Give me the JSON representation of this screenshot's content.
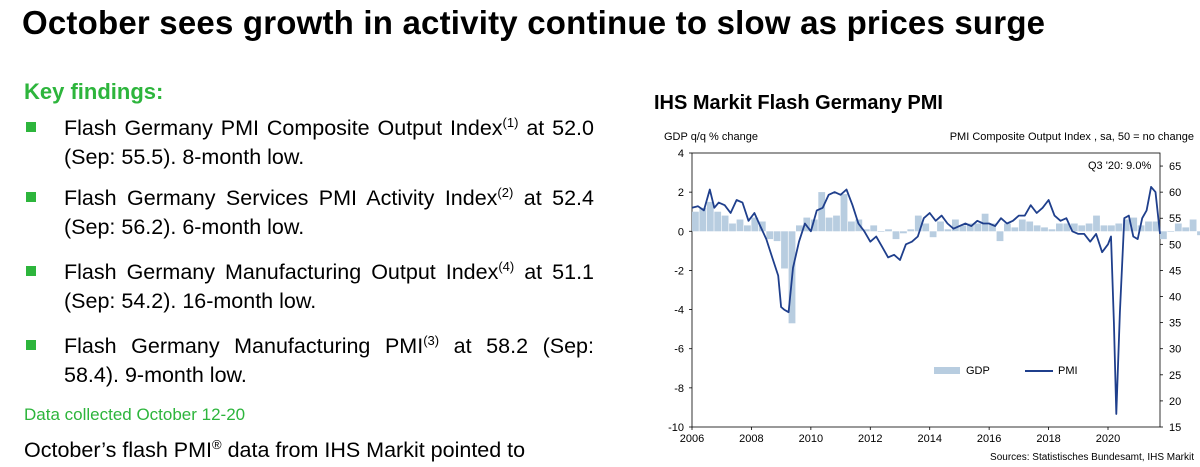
{
  "page": {
    "title": "October sees growth in activity continue to slow as prices surge",
    "key_findings_label": "Key findings:",
    "findings": [
      {
        "text": "Flash Germany PMI Composite Output Index",
        "sup": "(1)",
        "rest": " at 52.0 (Sep: 55.5). 8-month low."
      },
      {
        "text": "Flash Germany Services PMI Activity Index",
        "sup": "(2)",
        "rest": " at 52.4 (Sep: 56.2). 6-month low."
      },
      {
        "text": "Flash Germany Manufacturing Output Index",
        "sup": "(4)",
        "rest": " at 51.1 (Sep: 54.2). 16-month low."
      },
      {
        "text": "Flash Germany Manufacturing PMI",
        "sup": "(3)",
        "rest": " at 58.2 (Sep: 58.4). 9-month low."
      }
    ],
    "data_collected": "Data collected October 12-20",
    "paragraph_start": "October’s flash PMI",
    "paragraph_sup": "®",
    "paragraph_end": " data from IHS Markit pointed to",
    "accent_color": "#2db53c"
  },
  "chart_data": {
    "type": "bar",
    "title": "IHS Markit Flash Germany PMI",
    "left_axis_label": "GDP q/q % change",
    "right_axis_label": "PMI Composite Output Index , sa, 50 = no change",
    "annotation": "Q3 '20: 9.0%",
    "source": "Sources: Statistisches Bundesamt, IHS Markit",
    "x_range": [
      2006,
      2021.75
    ],
    "x_ticks": [
      "2006",
      "2008",
      "2010",
      "2012",
      "2014",
      "2016",
      "2018",
      "2020"
    ],
    "left_ylim": [
      -10,
      4
    ],
    "left_ticks": [
      "4",
      "2",
      "0",
      "-2",
      "-4",
      "-6",
      "-8",
      "-10"
    ],
    "right_ylim": [
      15,
      67.5
    ],
    "right_ticks": [
      "65",
      "60",
      "55",
      "50",
      "45",
      "40",
      "35",
      "30",
      "25",
      "20",
      "15"
    ],
    "legend": {
      "position": "bottom-right",
      "gdp_label": "GDP",
      "pmi_label": "PMI"
    },
    "colors": {
      "gdp": "#b8cde0",
      "pmi": "#1f3f8c"
    },
    "series": [
      {
        "name": "GDP",
        "axis": "left",
        "kind": "bar",
        "start": 2006.0,
        "step": 0.25,
        "values": [
          1.0,
          1.2,
          1.5,
          1.0,
          0.8,
          0.4,
          0.6,
          0.3,
          0.7,
          0.5,
          -0.4,
          -0.5,
          -1.9,
          -4.7,
          0.3,
          0.7,
          0.6,
          2.0,
          0.7,
          0.8,
          1.9,
          0.5,
          0.6,
          0.1,
          0.3,
          0.0,
          0.1,
          -0.4,
          -0.1,
          0.1,
          0.8,
          0.4,
          -0.3,
          0.5,
          0.1,
          0.6,
          0.3,
          0.4,
          0.4,
          0.9,
          0.4,
          -0.5,
          0.4,
          0.2,
          0.6,
          0.5,
          0.3,
          0.2,
          0.1,
          0.4,
          0.4,
          0.4,
          0.3,
          0.4,
          0.8,
          0.3,
          0.3,
          0.4,
          0.6,
          0.7,
          0.3,
          0.5,
          0.5,
          -0.4,
          0.0,
          0.4,
          0.2,
          0.6,
          -0.2,
          0.3,
          0.0,
          -1.9,
          -9.9,
          9.0,
          0.7,
          -1.9,
          2.0,
          1.8
        ]
      },
      {
        "name": "PMI",
        "axis": "right",
        "kind": "line",
        "x": [
          2006.0,
          2006.2,
          2006.4,
          2006.6,
          2006.75,
          2006.9,
          2007.1,
          2007.3,
          2007.5,
          2007.7,
          2007.9,
          2008.1,
          2008.3,
          2008.5,
          2008.7,
          2008.9,
          2009.0,
          2009.1,
          2009.25,
          2009.4,
          2009.6,
          2009.8,
          2010.0,
          2010.2,
          2010.4,
          2010.6,
          2010.8,
          2011.0,
          2011.2,
          2011.4,
          2011.6,
          2011.8,
          2012.0,
          2012.2,
          2012.4,
          2012.6,
          2012.8,
          2013.0,
          2013.2,
          2013.4,
          2013.6,
          2013.8,
          2014.0,
          2014.2,
          2014.4,
          2014.6,
          2014.8,
          2015.0,
          2015.2,
          2015.4,
          2015.6,
          2015.8,
          2016.0,
          2016.2,
          2016.4,
          2016.6,
          2016.8,
          2017.0,
          2017.2,
          2017.4,
          2017.6,
          2017.8,
          2018.0,
          2018.2,
          2018.4,
          2018.6,
          2018.8,
          2019.0,
          2019.2,
          2019.4,
          2019.6,
          2019.8,
          2020.0,
          2020.1,
          2020.2,
          2020.28,
          2020.4,
          2020.55,
          2020.7,
          2020.85,
          2021.0,
          2021.15,
          2021.3,
          2021.45,
          2021.6,
          2021.75
        ],
        "values": [
          57.0,
          57.3,
          56.5,
          60.5,
          57.0,
          58.0,
          57.5,
          56.0,
          58.5,
          58.0,
          54.5,
          56.0,
          53.5,
          51.0,
          47.5,
          44.0,
          38.0,
          37.5,
          37.0,
          45.5,
          50.5,
          54.0,
          52.5,
          56.5,
          57.0,
          59.5,
          60.0,
          59.5,
          60.5,
          57.5,
          54.0,
          52.5,
          50.5,
          51.5,
          49.5,
          47.5,
          48.0,
          47.0,
          50.0,
          50.5,
          51.5,
          55.0,
          56.0,
          54.5,
          55.5,
          54.0,
          53.0,
          53.5,
          54.0,
          53.5,
          54.5,
          54.0,
          54.0,
          53.5,
          55.0,
          54.0,
          54.5,
          55.5,
          55.5,
          57.5,
          56.0,
          57.0,
          58.5,
          55.5,
          54.5,
          55.0,
          52.5,
          52.0,
          52.0,
          50.5,
          52.0,
          48.5,
          50.0,
          51.5,
          35.0,
          17.5,
          37.0,
          55.0,
          55.5,
          51.5,
          51.0,
          55.0,
          56.5,
          61.0,
          60.0,
          52.0
        ]
      }
    ]
  }
}
